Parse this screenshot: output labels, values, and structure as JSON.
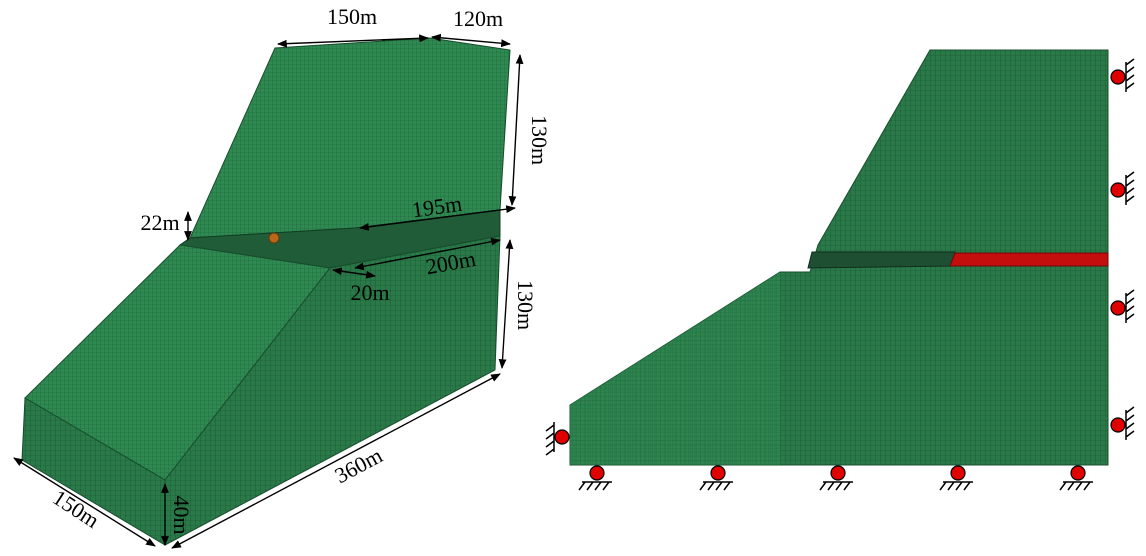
{
  "left_model": {
    "dimensions": [
      "150m",
      "120m",
      "130m",
      "195m",
      "22m",
      "200m",
      "20m",
      "130m",
      "360m",
      "150m",
      "40m"
    ]
  }
}
